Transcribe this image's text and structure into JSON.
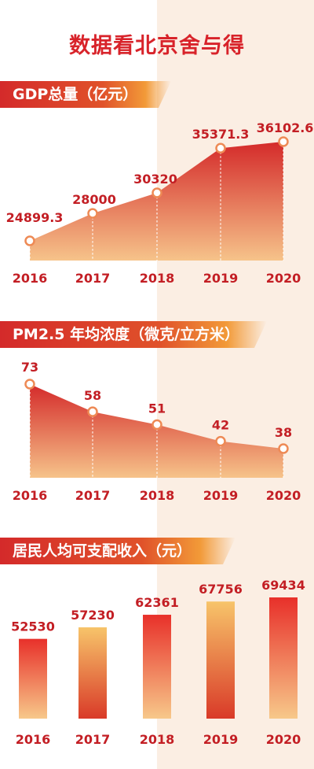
{
  "title": "数据看北京舍与得",
  "chart_data": [
    {
      "type": "area",
      "title": "GDP总量（亿元）",
      "categories": [
        "2016",
        "2017",
        "2018",
        "2019",
        "2020"
      ],
      "values": [
        24899.3,
        28000,
        30320,
        35371.3,
        36102.6
      ],
      "value_labels": [
        "24899.3",
        "28000",
        "30320",
        "35371.3",
        "36102.6"
      ]
    },
    {
      "type": "area",
      "title": "PM2.5 年均浓度（微克/立方米）",
      "categories": [
        "2016",
        "2017",
        "2018",
        "2019",
        "2020"
      ],
      "values": [
        73,
        58,
        51,
        42,
        38
      ],
      "value_labels": [
        "73",
        "58",
        "51",
        "42",
        "38"
      ]
    },
    {
      "type": "bar",
      "title": "居民人均可支配收入（元）",
      "categories": [
        "2016",
        "2017",
        "2018",
        "2019",
        "2020"
      ],
      "values": [
        52530,
        57230,
        62361,
        67756,
        69434
      ],
      "value_labels": [
        "52530",
        "57230",
        "62361",
        "67756",
        "69434"
      ]
    }
  ],
  "colors": {
    "title_red": "#d8232a",
    "label_red": "#c31e24",
    "area_top": "#d42a2a",
    "area_bottom": "#f6c38a",
    "bar_red_top": "#e8302a",
    "bar_red_bottom": "#f7c88a",
    "bar_yellow_top": "#f7c46a",
    "bar_yellow_bottom": "#d93a28"
  }
}
